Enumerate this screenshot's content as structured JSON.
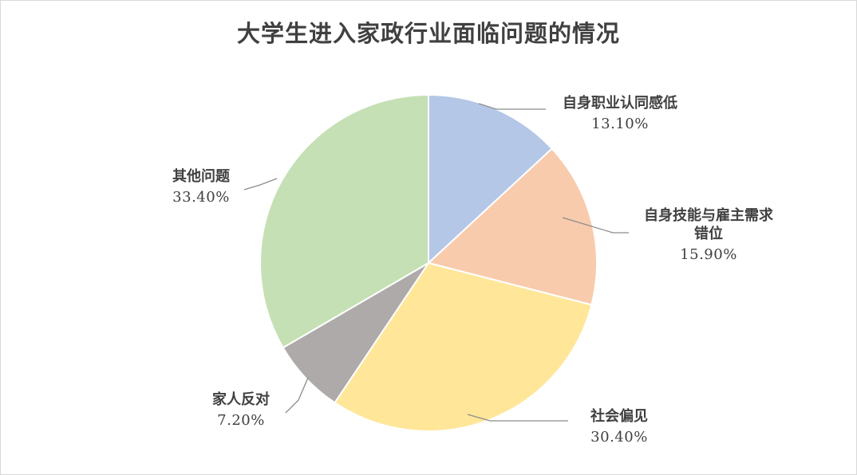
{
  "chart_data": {
    "type": "pie",
    "title": "大学生进入家政行业面临问题的情况",
    "categories": [
      "自身职业认同感低",
      "自身技能与雇主需求错位",
      "社会偏见",
      "家人反对",
      "其他问题"
    ],
    "values": [
      13.1,
      15.9,
      30.4,
      7.2,
      33.4
    ],
    "value_labels": [
      "13.10%",
      "15.90%",
      "30.40%",
      "7.20%",
      "33.40%"
    ],
    "colors": [
      "#b4c7e7",
      "#f8cbad",
      "#ffe699",
      "#aeaaaa",
      "#c5e0b4"
    ],
    "legend": "none",
    "start_angle": "12 o'clock",
    "direction": "clockwise"
  }
}
